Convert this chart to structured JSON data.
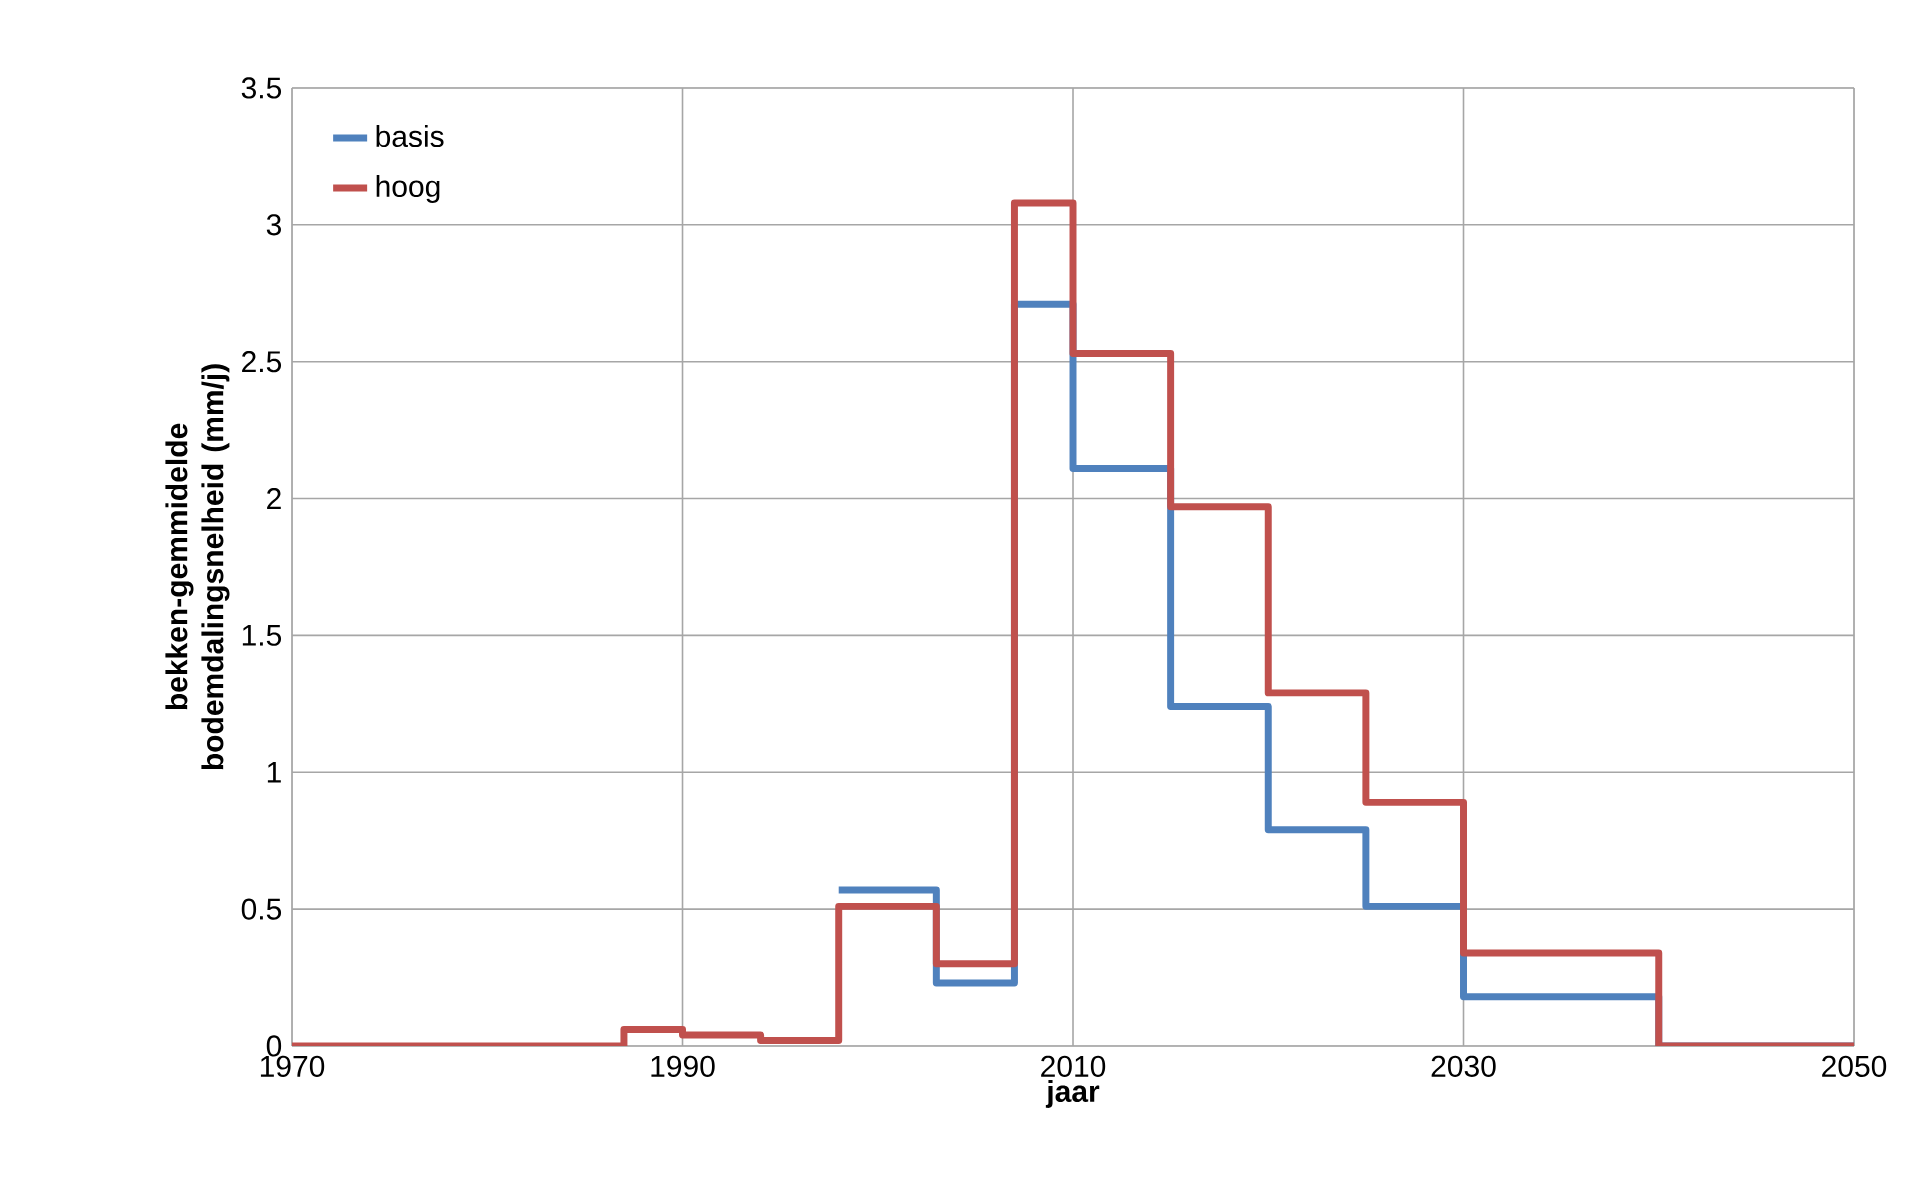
{
  "chart_data": {
    "type": "step",
    "xlabel": "jaar",
    "ylabel": "bekken-gemmidelde bodemdalingsnelheid (mm/j)",
    "x": [
      1970,
      1987,
      1990,
      1994,
      1998,
      2003,
      2007,
      2010,
      2015,
      2020,
      2025,
      2030,
      2040,
      2050
    ],
    "series": [
      {
        "name": "basis",
        "color": "#4f81bd",
        "values": [
          null,
          null,
          null,
          null,
          0.57,
          0.23,
          2.71,
          2.11,
          1.24,
          0.79,
          0.51,
          0.18,
          0,
          0
        ]
      },
      {
        "name": "hoog",
        "color": "#c0504d",
        "values": [
          0,
          0.06,
          0.04,
          0.02,
          0.51,
          0.3,
          3.08,
          2.53,
          1.97,
          1.29,
          0.89,
          0.34,
          0,
          0
        ]
      }
    ],
    "xlim": [
      1970,
      2050
    ],
    "ylim": [
      0,
      3.5
    ],
    "xticks": [
      1970,
      1990,
      2010,
      2030,
      2050
    ],
    "yticks": [
      0,
      0.5,
      1,
      1.5,
      2,
      2.5,
      3,
      3.5
    ],
    "grid": true,
    "legend": "top left",
    "marker": "none",
    "line_style": "solid"
  }
}
